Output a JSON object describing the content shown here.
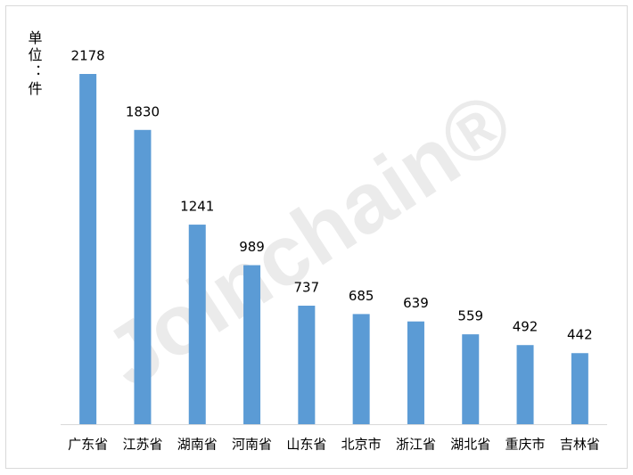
{
  "chart_data": {
    "type": "bar",
    "y_label": "单位：件",
    "watermark": "Joinchain®",
    "categories": [
      "广东省",
      "江苏省",
      "湖南省",
      "河南省",
      "山东省",
      "北京市",
      "浙江省",
      "湖北省",
      "重庆市",
      "吉林省"
    ],
    "values": [
      2178,
      1830,
      1241,
      989,
      737,
      685,
      639,
      559,
      492,
      442
    ],
    "color": "#5b9bd5"
  }
}
